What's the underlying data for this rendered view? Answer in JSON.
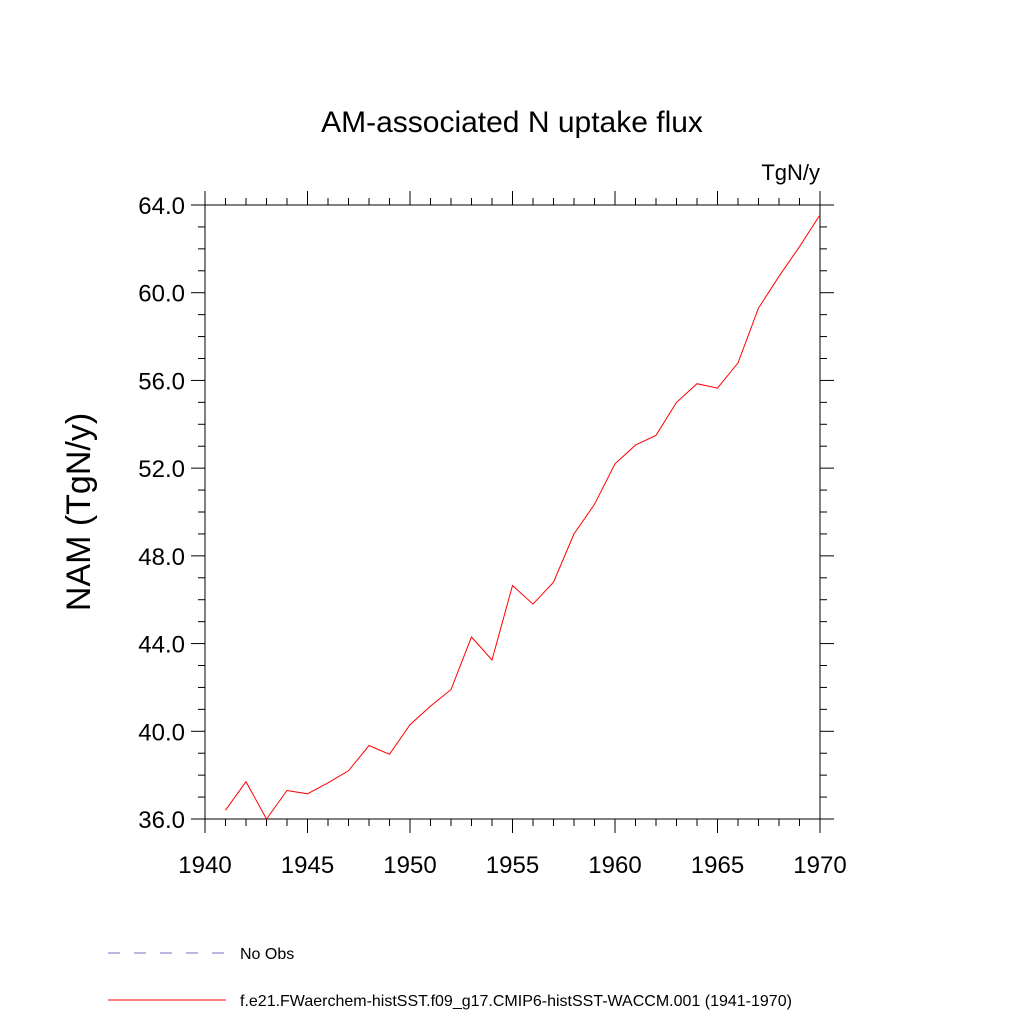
{
  "chart_data": {
    "type": "line",
    "title": "AM-associated N uptake flux",
    "units_label": "TgN/y",
    "xlabel": "",
    "ylabel": "NAM  (TgN/y)",
    "xlim": [
      1940,
      1970
    ],
    "ylim": [
      36.0,
      64.0
    ],
    "x_ticks": [
      1940,
      1945,
      1950,
      1955,
      1960,
      1965,
      1970
    ],
    "x_tick_labels": [
      "1940",
      "1945",
      "1950",
      "1955",
      "1960",
      "1965",
      "1970"
    ],
    "y_ticks": [
      36,
      40,
      44,
      48,
      52,
      56,
      60,
      64
    ],
    "y_tick_labels": [
      "36.0",
      "40.0",
      "44.0",
      "48.0",
      "52.0",
      "56.0",
      "60.0",
      "64.0"
    ],
    "grid": false,
    "legend_position": "bottom",
    "series": [
      {
        "name": "f.e21.FWaerchem-histSST.f09_g17.CMIP6-histSST-WACCM.001 (1941-1970)",
        "color": "#ff0000",
        "style": "solid",
        "x": [
          1941,
          1942,
          1943,
          1944,
          1945,
          1946,
          1947,
          1948,
          1949,
          1950,
          1951,
          1952,
          1953,
          1954,
          1955,
          1956,
          1957,
          1958,
          1959,
          1960,
          1961,
          1962,
          1963,
          1964,
          1965,
          1966,
          1967,
          1968,
          1969,
          1970
        ],
        "y": [
          36.4,
          37.7,
          36.0,
          37.3,
          37.15,
          37.65,
          38.2,
          39.35,
          38.95,
          40.3,
          41.15,
          41.9,
          44.3,
          43.25,
          46.65,
          45.8,
          46.8,
          49.0,
          50.35,
          52.2,
          53.05,
          53.5,
          55.0,
          55.85,
          55.65,
          56.8,
          59.3,
          60.75,
          62.1,
          63.55
        ]
      }
    ],
    "legend": [
      {
        "label": "No Obs",
        "color": "#7070c0",
        "style": "dashed"
      },
      {
        "label": "f.e21.FWaerchem-histSST.f09_g17.CMIP6-histSST-WACCM.001 (1941-1970)",
        "color": "#ff0000",
        "style": "solid"
      }
    ]
  }
}
